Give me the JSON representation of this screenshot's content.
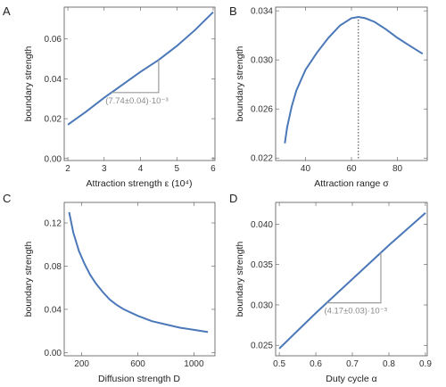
{
  "chart_data": [
    {
      "type": "line",
      "panel": "A",
      "xlabel": "Attraction strength  ε (10⁴)",
      "ylabel": "boundary strength",
      "xlim": [
        1.9,
        6.05
      ],
      "ylim": [
        -0.001,
        0.076
      ],
      "xticks": [
        2,
        3,
        4,
        5,
        6
      ],
      "yticks": [
        0.0,
        0.02,
        0.04,
        0.06
      ],
      "ytick_labels": [
        "0.00",
        "0.02",
        "0.04",
        "0.06"
      ],
      "x": [
        2.0,
        2.5,
        3.0,
        3.5,
        4.0,
        4.5,
        5.0,
        5.5,
        6.0
      ],
      "y": [
        0.017,
        0.0235,
        0.0305,
        0.037,
        0.0435,
        0.0495,
        0.0565,
        0.0645,
        0.0735
      ],
      "annotation": {
        "text": "(7.74±0.04)·10⁻³",
        "x_from": 3.2,
        "x_to": 4.5
      }
    },
    {
      "type": "line",
      "panel": "B",
      "xlabel": "Attraction range σ",
      "ylabel": "boundary strength",
      "xlim": [
        27,
        93
      ],
      "ylim": [
        0.0218,
        0.0343
      ],
      "xticks": [
        40,
        60,
        80
      ],
      "yticks": [
        0.022,
        0.026,
        0.03,
        0.034
      ],
      "ytick_labels": [
        "0.022",
        "0.026",
        "0.030",
        "0.034"
      ],
      "x": [
        31,
        32,
        34,
        36,
        40,
        45,
        50,
        55,
        60,
        63,
        66,
        70,
        75,
        80,
        85,
        91
      ],
      "y": [
        0.0232,
        0.0245,
        0.0262,
        0.0275,
        0.0292,
        0.0306,
        0.0318,
        0.0328,
        0.0334,
        0.0335,
        0.0334,
        0.0331,
        0.0325,
        0.0318,
        0.0312,
        0.0305
      ],
      "reference_line_x": 63
    },
    {
      "type": "line",
      "panel": "C",
      "xlabel": "Diffusion strength D",
      "ylabel": "boundary strength",
      "xlim": [
        75,
        1150
      ],
      "ylim": [
        -0.003,
        0.139
      ],
      "xticks": [
        200,
        600,
        1000
      ],
      "yticks": [
        0.0,
        0.04,
        0.08,
        0.12
      ],
      "ytick_labels": [
        "0.00",
        "0.04",
        "0.08",
        "0.12"
      ],
      "x": [
        110,
        140,
        180,
        220,
        260,
        300,
        350,
        400,
        450,
        500,
        600,
        700,
        800,
        900,
        1000,
        1100
      ],
      "y": [
        0.13,
        0.111,
        0.094,
        0.082,
        0.072,
        0.064,
        0.056,
        0.049,
        0.044,
        0.04,
        0.034,
        0.029,
        0.026,
        0.023,
        0.021,
        0.019
      ]
    },
    {
      "type": "line",
      "panel": "D",
      "xlabel": "Duty cycle α",
      "ylabel": "boundary strength",
      "xlim": [
        0.49,
        0.905
      ],
      "ylim": [
        0.0237,
        0.0427
      ],
      "xticks": [
        0.5,
        0.6,
        0.7,
        0.8,
        0.9
      ],
      "yticks": [
        0.025,
        0.03,
        0.035,
        0.04
      ],
      "ytick_labels": [
        "0.025",
        "0.030",
        "0.035",
        "0.040"
      ],
      "x": [
        0.5,
        0.55,
        0.6,
        0.65,
        0.7,
        0.75,
        0.8,
        0.85,
        0.9
      ],
      "y": [
        0.0246,
        0.0268,
        0.029,
        0.0311,
        0.0332,
        0.0353,
        0.0374,
        0.0394,
        0.0414
      ],
      "annotation": {
        "text": "(4.17±0.03)·10⁻³",
        "x_from": 0.63,
        "x_to": 0.778
      }
    }
  ]
}
